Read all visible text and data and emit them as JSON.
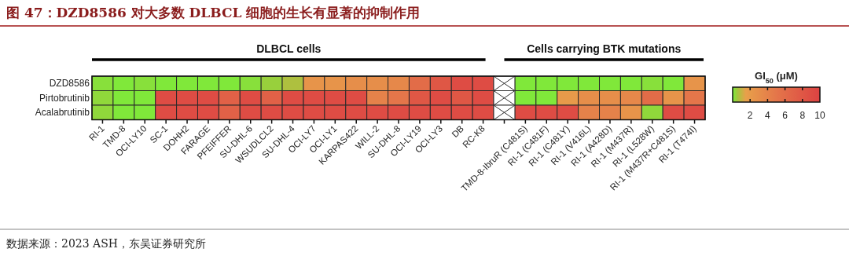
{
  "chart_data": {
    "type": "heatmap",
    "title": "图 47：DZD8586 对大多数 DLBCL 细胞的生长有显著的抑制作用",
    "categories": [
      "RI-1",
      "TMD-8",
      "OCI-LY10",
      "SC-1",
      "DOHH2",
      "FARAGE",
      "PFEIFFER",
      "SU-DHL-6",
      "WSUDLCL2",
      "SU-DHL-4",
      "OCI-LY7",
      "OCI-LY1",
      "KARPAS422",
      "WILL-2",
      "SU-DHL-8",
      "OCI-LY19",
      "OCI-LY3",
      "DB",
      "RC-K8",
      null,
      "TMD-8-IbruR (C481S)",
      "RI-1 (C481F)",
      "RI-1 (C481Y)",
      "RI-1 (V416L)",
      "RI-1 (A428D)",
      "RI-1 (M437R)",
      "RI-1 (L528W)",
      "RI-1 (M437R+C481S)",
      "RI-1 (T474I)"
    ],
    "y_categories": [
      "DZD8586",
      "Pirtobrutinib",
      "Acalabrutinib"
    ],
    "cells": [
      [
        0.2,
        0.1,
        0.2,
        0.1,
        0.1,
        0.1,
        0.1,
        0.2,
        0.4,
        0.7,
        2.5,
        2.5,
        3,
        3,
        3.5,
        6,
        8,
        9,
        9,
        null,
        0.1,
        0.1,
        0.1,
        0.1,
        0.1,
        0.1,
        0.2,
        0.1,
        2.5
      ],
      [
        0.3,
        0.1,
        0.1,
        9,
        9,
        9,
        7,
        9,
        7,
        9,
        9,
        9,
        9,
        4,
        5,
        8,
        9,
        8,
        9,
        null,
        0.1,
        0.1,
        2,
        3,
        3,
        3.5,
        6,
        2.5,
        5
      ],
      [
        0.3,
        0.1,
        0.1,
        9,
        9,
        9,
        7,
        9,
        9,
        9,
        9,
        9,
        9,
        9,
        9,
        9,
        9,
        9,
        9,
        null,
        9,
        9,
        9,
        4,
        4,
        2.5,
        0.3,
        9,
        9
      ]
    ],
    "clabel": "GI$_{50}$ (μM)",
    "clim": [
      0,
      10
    ],
    "cticks": [
      2,
      4,
      6,
      8,
      10
    ],
    "annotations": [
      "DLBCL cells",
      "Cells carrying BTK mutations",
      "数据来源：2023 ASH，东吴证券研究所"
    ]
  }
}
